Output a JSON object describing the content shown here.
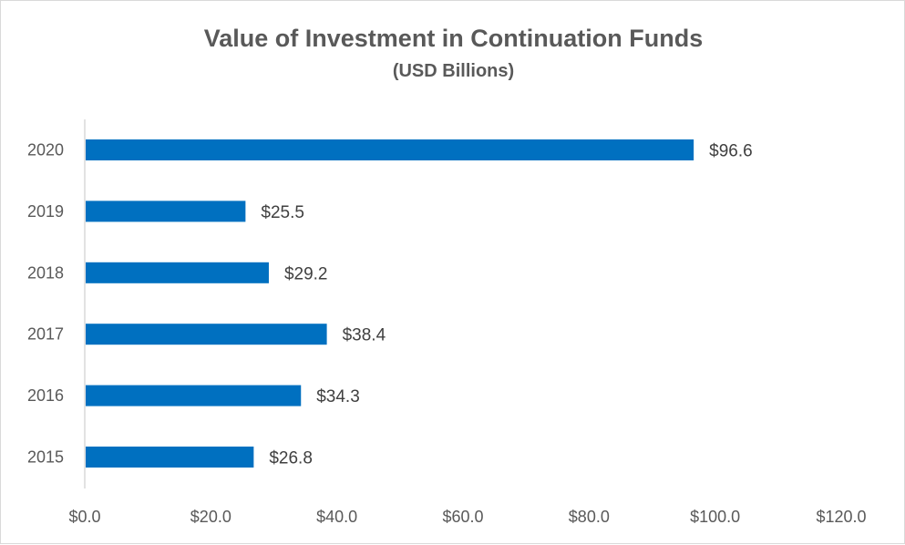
{
  "chart_data": {
    "type": "bar",
    "orientation": "horizontal",
    "title": "Value of Investment in Continuation Funds",
    "subtitle": "(USD Billions)",
    "categories": [
      "2020",
      "2019",
      "2018",
      "2017",
      "2016",
      "2015"
    ],
    "values": [
      96.6,
      25.5,
      29.2,
      38.4,
      34.3,
      26.8
    ],
    "data_labels": [
      "$96.6",
      "$25.5",
      "$29.2",
      "$38.4",
      "$34.3",
      "$26.8"
    ],
    "xlim": [
      0,
      120
    ],
    "x_ticks": [
      0,
      20,
      40,
      60,
      80,
      100,
      120
    ],
    "x_tick_labels": [
      "$0.0",
      "$20.0",
      "$40.0",
      "$60.0",
      "$80.0",
      "$100.0",
      "$120.0"
    ],
    "xlabel": "",
    "ylabel": "",
    "grid": false,
    "legend": "none",
    "bar_color": "#0070c0",
    "axis_color": "#d9d9d9"
  }
}
